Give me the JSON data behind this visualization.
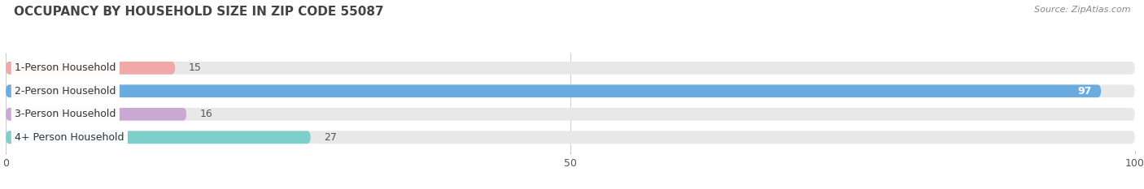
{
  "title": "OCCUPANCY BY HOUSEHOLD SIZE IN ZIP CODE 55087",
  "source": "Source: ZipAtlas.com",
  "categories": [
    "1-Person Household",
    "2-Person Household",
    "3-Person Household",
    "4+ Person Household"
  ],
  "values": [
    15,
    97,
    16,
    27
  ],
  "bar_colors": [
    "#f0a8a8",
    "#6aabe0",
    "#c9a8d4",
    "#7ececa"
  ],
  "track_color": "#e8e8e8",
  "bg_color": "#ffffff",
  "xlim": [
    0,
    100
  ],
  "title_fontsize": 11,
  "label_fontsize": 9,
  "value_fontsize": 9,
  "tick_fontsize": 9,
  "source_fontsize": 8
}
